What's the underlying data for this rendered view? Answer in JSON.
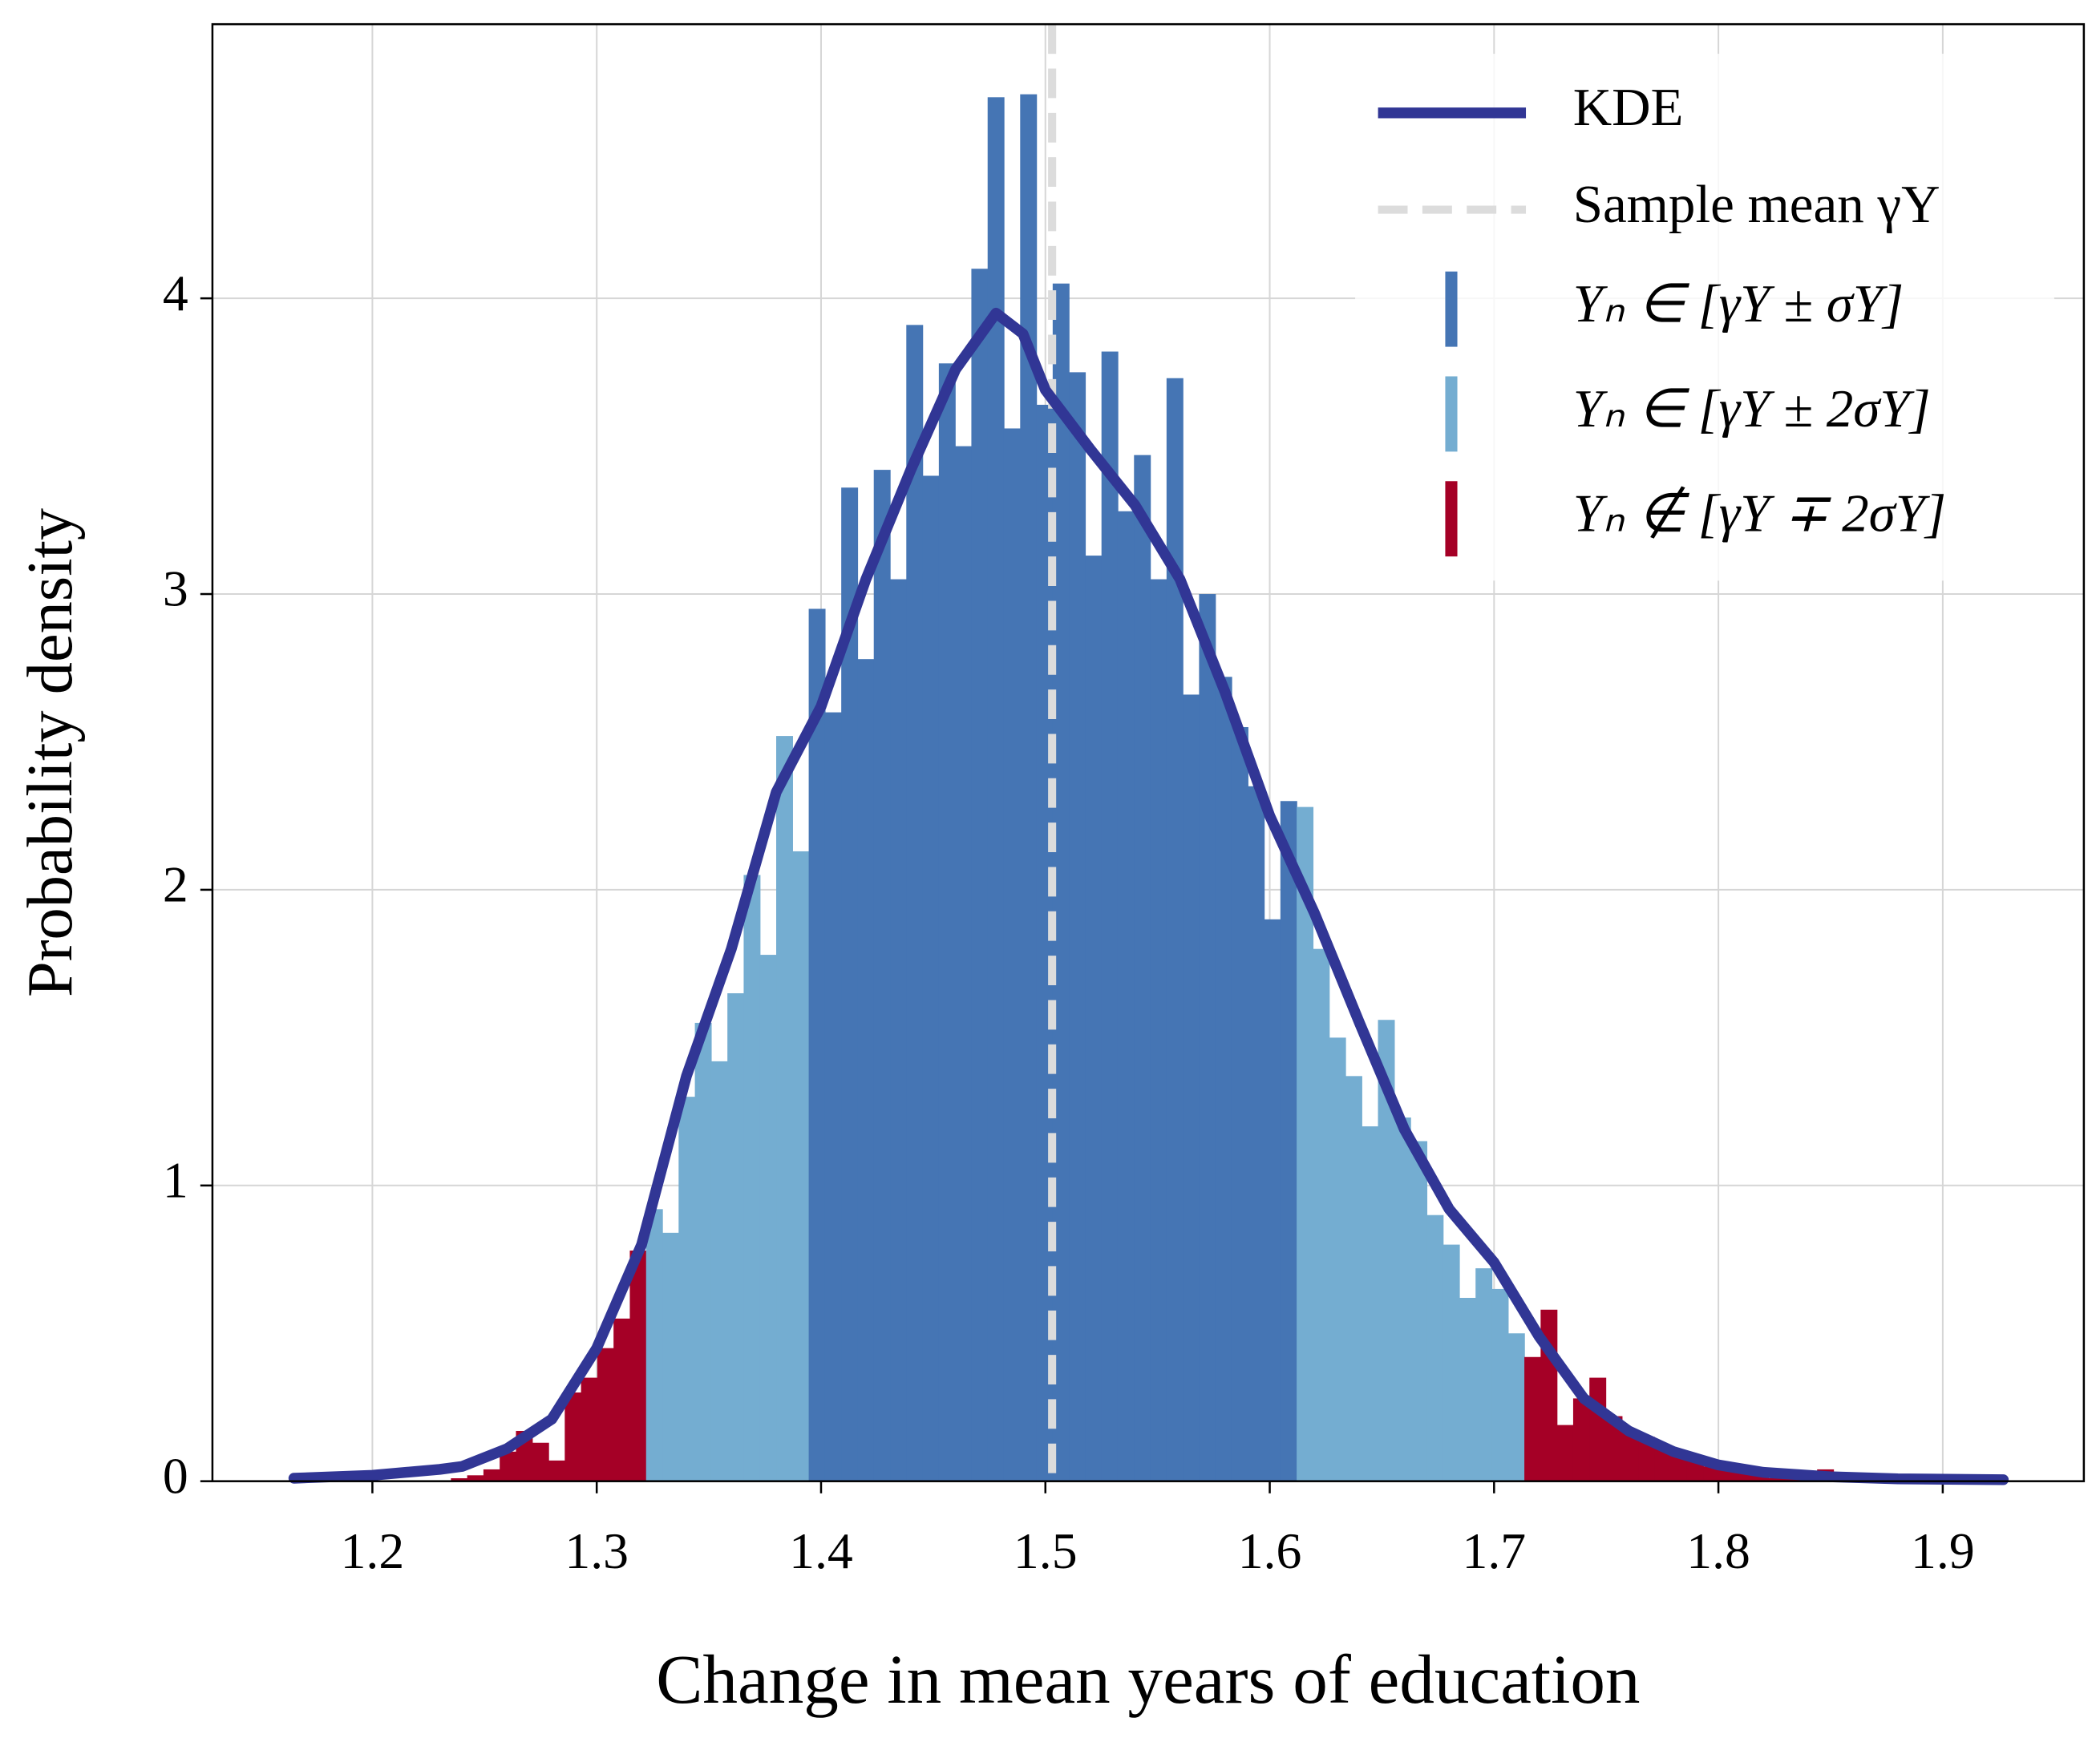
{
  "chart_data": {
    "type": "histogram",
    "xlabel": "Change in mean years of education",
    "ylabel": "Probability density",
    "bins": [
      1.235,
      1.24225,
      1.2495,
      1.25675,
      1.264,
      1.27125,
      1.2785,
      1.28575,
      1.293,
      1.30025,
      1.3075,
      1.31475,
      1.322,
      1.32925,
      1.3365,
      1.34375,
      1.351,
      1.35825,
      1.3655,
      1.37275,
      1.38,
      1.38725,
      1.3945,
      1.40175,
      1.409,
      1.41625,
      1.4235,
      1.43075,
      1.438,
      1.44525,
      1.4525,
      1.45975,
      1.467,
      1.47425,
      1.4815,
      1.48875,
      1.496,
      1.50325,
      1.5105,
      1.51775,
      1.525,
      1.53225,
      1.5395,
      1.54675,
      1.554,
      1.56125,
      1.5685,
      1.57575,
      1.583,
      1.59025,
      1.5975,
      1.60475,
      1.612,
      1.61925,
      1.6265,
      1.63375,
      1.641,
      1.64825,
      1.6555,
      1.66275,
      1.67,
      1.67725,
      1.6845,
      1.69175,
      1.699,
      1.70625,
      1.7135,
      1.72075,
      1.728,
      1.73525,
      1.7425,
      1.74975,
      1.757,
      1.76425,
      1.7715,
      1.77875,
      1.786,
      1.79325,
      1.8005,
      1.80775,
      1.815,
      1.82225,
      1.8295,
      1.83675,
      1.844,
      1.85125
    ],
    "counts": [
      0.01,
      0.02,
      0.04,
      0.1,
      0.17,
      0.13,
      0.07,
      0.3,
      0.35,
      0.45,
      0.55,
      0.78,
      0.92,
      0.84,
      1.3,
      1.55,
      1.42,
      1.65,
      2.05,
      1.78,
      2.52,
      2.13,
      2.95,
      2.6,
      3.36,
      2.78,
      3.42,
      3.05,
      3.91,
      3.4,
      3.78,
      3.5,
      4.1,
      4.68,
      3.56,
      4.69,
      3.64,
      4.05,
      3.75,
      3.13,
      3.82,
      3.28,
      3.47,
      3.05,
      3.73,
      2.66,
      3.0,
      2.72,
      2.55,
      2.35,
      1.9,
      2.3,
      2.28,
      1.8,
      1.5,
      1.37,
      1.2,
      1.56,
      1.23,
      1.15,
      0.9,
      0.8,
      0.62,
      0.72,
      0.65,
      0.5,
      0.42,
      0.58,
      0.19,
      0.28,
      0.35,
      0.22,
      0.17,
      0.15,
      0.12,
      0.09,
      0.07,
      0.05,
      0.04,
      0.03,
      0.02,
      0.01,
      0.01,
      0.0,
      0.04
    ],
    "bar_colors": [
      "#a50026",
      "#a50026",
      "#a50026",
      "#a50026",
      "#a50026",
      "#a50026",
      "#a50026",
      "#a50026",
      "#a50026",
      "#a50026",
      "#a50026",
      "#a50026",
      "#74add1",
      "#74add1",
      "#74add1",
      "#74add1",
      "#74add1",
      "#74add1",
      "#74add1",
      "#74add1",
      "#74add1",
      "#74add1",
      "#4575b4",
      "#4575b4",
      "#4575b4",
      "#4575b4",
      "#4575b4",
      "#4575b4",
      "#4575b4",
      "#4575b4",
      "#4575b4",
      "#4575b4",
      "#4575b4",
      "#4575b4",
      "#4575b4",
      "#4575b4",
      "#4575b4",
      "#4575b4",
      "#4575b4",
      "#4575b4",
      "#4575b4",
      "#4575b4",
      "#4575b4",
      "#4575b4",
      "#4575b4",
      "#4575b4",
      "#4575b4",
      "#4575b4",
      "#4575b4",
      "#4575b4",
      "#4575b4",
      "#4575b4",
      "#74add1",
      "#74add1",
      "#74add1",
      "#74add1",
      "#74add1",
      "#74add1",
      "#74add1",
      "#74add1",
      "#74add1",
      "#74add1",
      "#74add1",
      "#74add1",
      "#74add1",
      "#74add1",
      "#a50026",
      "#a50026",
      "#a50026",
      "#a50026",
      "#a50026",
      "#a50026",
      "#a50026",
      "#a50026",
      "#a50026",
      "#a50026",
      "#a50026",
      "#a50026",
      "#a50026",
      "#a50026",
      "#a50026",
      "#a50026",
      "#a50026",
      "#a50026",
      "#a50026"
    ],
    "kde": {
      "name": "KDE",
      "color": "#313695",
      "x": [
        1.165,
        1.2,
        1.23,
        1.24,
        1.26,
        1.28,
        1.3,
        1.32,
        1.34,
        1.36,
        1.38,
        1.4,
        1.42,
        1.44,
        1.46,
        1.478,
        1.49,
        1.5,
        1.52,
        1.54,
        1.56,
        1.58,
        1.6,
        1.62,
        1.64,
        1.66,
        1.68,
        1.7,
        1.72,
        1.74,
        1.76,
        1.78,
        1.8,
        1.82,
        1.85,
        1.88,
        1.927
      ],
      "y": [
        0.01,
        0.02,
        0.04,
        0.05,
        0.11,
        0.21,
        0.45,
        0.8,
        1.37,
        1.8,
        2.33,
        2.62,
        3.05,
        3.42,
        3.76,
        3.95,
        3.88,
        3.69,
        3.49,
        3.3,
        3.05,
        2.67,
        2.25,
        1.92,
        1.55,
        1.19,
        0.92,
        0.74,
        0.49,
        0.28,
        0.17,
        0.1,
        0.055,
        0.03,
        0.015,
        0.008,
        0.005
      ]
    },
    "mean": {
      "name": "Sample mean γY",
      "value": 1.503,
      "color": "#dcdcdc"
    },
    "classes": [
      {
        "name": "Yₙ ∈ [γY ± σY]",
        "color": "#4575b4"
      },
      {
        "name": "Yₙ ∈ [γY ± 2σY]",
        "color": "#74add1"
      },
      {
        "name": "Yₙ ∉ [γY ∓ 2σY]",
        "color": "#a50026"
      }
    ],
    "xlim": [
      1.1287,
      1.9629
    ],
    "ylim": [
      0,
      4.927
    ],
    "xticks": [
      1.2,
      1.3,
      1.4,
      1.5,
      1.6,
      1.7,
      1.8,
      1.9
    ],
    "yticks": [
      0,
      1,
      2,
      3,
      4
    ],
    "grid": true,
    "legend": "upper right"
  }
}
